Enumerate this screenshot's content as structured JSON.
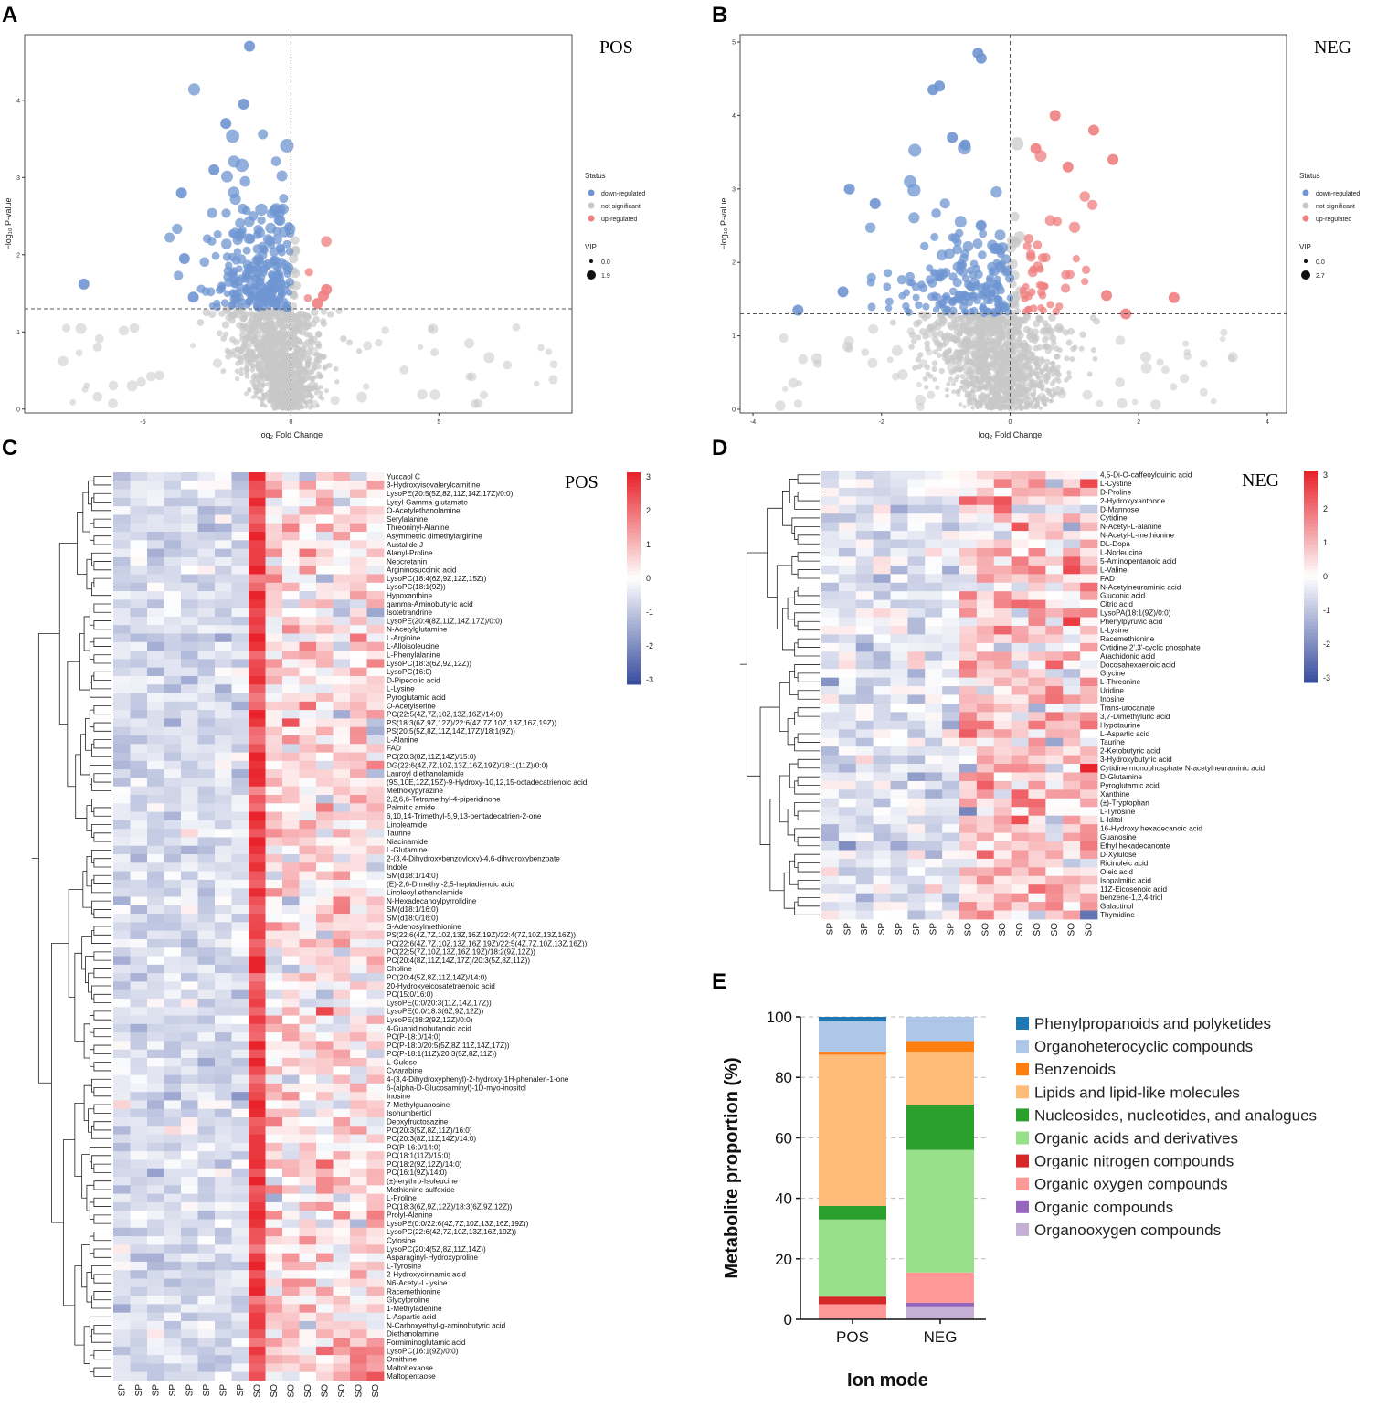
{
  "panel_labels": {
    "a": "A",
    "b": "B",
    "c": "C",
    "d": "D",
    "e": "E"
  },
  "colors": {
    "down": "#6f95d2",
    "ns": "#c8c8c8",
    "up": "#ef7f7f",
    "hm_low": "#3a4fa0",
    "hm_mid": "#ffffff",
    "hm_high": "#e8232b",
    "bar_colors": [
      "#1f77b4",
      "#aec7e8",
      "#ff7f0e",
      "#ffbb78",
      "#2ca02c",
      "#98df8a",
      "#d62728",
      "#ff9896",
      "#9467bd",
      "#c5b0d5"
    ]
  },
  "chart_data": [
    {
      "id": "volcano_pos",
      "type": "scatter",
      "title": "POS",
      "xlabel": "log₂ Fold Change",
      "ylabel": "−log₁₀ P-value",
      "xticks": [
        "-5",
        "0",
        "5"
      ],
      "yticks": [
        "0",
        "1",
        "2",
        "3",
        "4"
      ],
      "xlim": [
        -9,
        9.5
      ],
      "ylim": [
        -0.05,
        4.85
      ],
      "threshold_y": 1.3,
      "threshold_x": 0,
      "legend": {
        "status_title": "Status",
        "status": [
          "down-regulated",
          "not significant",
          "up-regulated"
        ],
        "vip_title": "VIP",
        "vip": [
          "0.0",
          "1.9"
        ]
      },
      "highlight_points": {
        "down": [
          [
            -1.4,
            4.7
          ],
          [
            -7.0,
            1.62
          ],
          [
            -3.7,
            2.8
          ],
          [
            -3.6,
            1.95
          ],
          [
            -3.3,
            1.45
          ],
          [
            -2.6,
            3.1
          ],
          [
            -2.2,
            3.7
          ],
          [
            -1.6,
            3.95
          ]
        ],
        "up": [
          [
            1.2,
            1.55
          ],
          [
            1.1,
            1.47
          ],
          [
            0.9,
            1.37
          ]
        ]
      }
    },
    {
      "id": "volcano_neg",
      "type": "scatter",
      "title": "NEG",
      "xlabel": "log₂ Fold Change",
      "ylabel": "−log₁₀ P-value",
      "xticks": [
        "-4",
        "-2",
        "0",
        "2",
        "4"
      ],
      "yticks": [
        "0",
        "1",
        "2",
        "3",
        "4",
        "5"
      ],
      "xlim": [
        -4.2,
        4.3
      ],
      "ylim": [
        -0.05,
        5.1
      ],
      "threshold_y": 1.3,
      "threshold_x": 0,
      "legend": {
        "status_title": "Status",
        "status": [
          "down-regulated",
          "not significant",
          "up-regulated"
        ],
        "vip_title": "VIP",
        "vip": [
          "0.0",
          "2.7"
        ]
      },
      "highlight_points": {
        "down": [
          [
            -0.5,
            4.85
          ],
          [
            -0.45,
            4.78
          ],
          [
            -1.1,
            4.4
          ],
          [
            -1.2,
            4.35
          ],
          [
            -2.5,
            3.0
          ],
          [
            -3.3,
            1.35
          ],
          [
            -2.6,
            1.6
          ],
          [
            -2.1,
            2.8
          ],
          [
            -0.9,
            3.7
          ],
          [
            -0.7,
            3.6
          ]
        ],
        "up": [
          [
            0.7,
            4.0
          ],
          [
            1.3,
            3.8
          ],
          [
            1.6,
            3.4
          ],
          [
            0.4,
            3.55
          ],
          [
            2.55,
            1.52
          ],
          [
            1.5,
            1.55
          ],
          [
            0.9,
            3.3
          ],
          [
            1.8,
            1.3
          ]
        ]
      }
    },
    {
      "id": "heatmap_pos",
      "type": "heatmap",
      "title": "POS",
      "columns": [
        "SP",
        "SP",
        "SP",
        "SP",
        "SP",
        "SP",
        "SP",
        "SP",
        "SO",
        "SO",
        "SO",
        "SO",
        "SO",
        "SO",
        "SO",
        "SO"
      ],
      "colorbar_ticks": [
        "3",
        "2",
        "1",
        "0",
        "-1",
        "-2",
        "-3"
      ],
      "rows": [
        "Yuccaol C",
        "3-Hydroxyisovalerylcarnitine",
        "LysoPE(20:5(5Z,8Z,11Z,14Z,17Z)/0:0)",
        "Lysyl-Gamma-glutamate",
        "O-Acetylethanolamine",
        "Serylalanine",
        "Threoninyl-Alanine",
        "Asymmetric dimethylarginine",
        "Austalide J",
        "Alanyl-Proline",
        "Neocretanin",
        "Argininosuccinic acid",
        "LysoPC(18:4(6Z,9Z,12Z,15Z))",
        "LysoPC(18:1(9Z))",
        "Hypoxanthine",
        "gamma-Aminobutyric acid",
        "Isotetrandrine",
        "LysoPE(20:4(8Z,11Z,14Z,17Z)/0:0)",
        "N-Acetylglutamine",
        "L-Arginine",
        "L-Alloisoleucine",
        "L-Phenylalanine",
        "LysoPC(18:3(6Z,9Z,12Z))",
        "LysoPC(16:0)",
        "D-Pipecolic acid",
        "L-Lysine",
        "Pyroglutamic acid",
        "O-Acetylserine",
        "PC(22:5(4Z,7Z,10Z,13Z,16Z)/14:0)",
        "PS(18:3(6Z,9Z,12Z)/22:6(4Z,7Z,10Z,13Z,16Z,19Z))",
        "PS(20:5(5Z,8Z,11Z,14Z,17Z)/18:1(9Z))",
        "L-Alanine",
        "FAD",
        "PC(20:3(8Z,11Z,14Z)/15:0)",
        "DG(22:6(4Z,7Z,10Z,13Z,16Z,19Z)/18:1(11Z)/0:0)",
        "Lauroyl diethanolamide",
        "(9S,10E,12Z,15Z)-9-Hydroxy-10,12,15-octadecatrienoic acid",
        "Methoxypyrazine",
        "2,2,6,6-Tetramethyl-4-piperidinone",
        "Palmitic amide",
        "6,10,14-Trimethyl-5,9,13-pentadecatrien-2-one",
        "Linoleamide",
        "Taurine",
        "Niacinamide",
        "L-Glutamine",
        "2-(3,4-Dihydroxybenzoyloxy)-4,6-dihydroxybenzoate",
        "Indole",
        "SM(d18:1/14:0)",
        "(E)-2,6-Dimethyl-2,5-heptadienoic acid",
        "Linoleoyl ethanolamide",
        "N-Hexadecanoylpyrrolidine",
        "SM(d18:1/16:0)",
        "SM(d18:0/16:0)",
        "S-Adenosylmethionine",
        "PS(22:6(4Z,7Z,10Z,13Z,16Z,19Z)/22:4(7Z,10Z,13Z,16Z))",
        "PC(22:6(4Z,7Z,10Z,13Z,16Z,19Z)/22:5(4Z,7Z,10Z,13Z,16Z))",
        "PC(22:5(7Z,10Z,13Z,16Z,19Z)/18:2(9Z,12Z))",
        "PC(20:4(8Z,11Z,14Z,17Z)/20:3(5Z,8Z,11Z))",
        "Choline",
        "PC(20:4(5Z,8Z,11Z,14Z)/14:0)",
        "20-Hydroxyeicosatetraenoic acid",
        "PC(15:0/16:0)",
        "LysoPE(0:0/20:3(11Z,14Z,17Z))",
        "LysoPE(0:0/18:3(6Z,9Z,12Z))",
        "LysoPE(18:2(9Z,12Z)/0:0)",
        "4-Guanidinobutanoic acid",
        "PC(P-18:0/14:0)",
        "PC(P-18:0/20:5(5Z,8Z,11Z,14Z,17Z))",
        "PC(P-18:1(11Z)/20:3(5Z,8Z,11Z))",
        "L-Gulose",
        "Cytarabine",
        "4-(3,4-Dihydroxyphenyl)-2-hydroxy-1H-phenalen-1-one",
        "6-(alpha-D-Glucosaminyl)-1D-myo-inositol",
        "Inosine",
        "7-Methylguanosine",
        "Isohumbertiol",
        "Deoxyfructosazine",
        "PC(20:3(5Z,8Z,11Z)/16:0)",
        "PC(20:3(8Z,11Z,14Z)/14:0)",
        "PC(P-16:0/14:0)",
        "PC(18:1(11Z)/15:0)",
        "PC(18:2(9Z,12Z)/14:0)",
        "PC(16:1(9Z)/14:0)",
        "(±)-erythro-Isoleucine",
        "Methionine sulfoxide",
        "L-Proline",
        "PC(18:3(6Z,9Z,12Z)/18:3(6Z,9Z,12Z))",
        "Prolyl-Alanine",
        "LysoPE(0:0/22:6(4Z,7Z,10Z,13Z,16Z,19Z))",
        "LysoPC(22:6(4Z,7Z,10Z,13Z,16Z,19Z))",
        "Cytosine",
        "LysoPC(20:4(5Z,8Z,11Z,14Z))",
        "Asparaginyl-Hydroxyproline",
        "L-Tyrosine",
        "2-Hydroxycinnamic acid",
        "N6-Acetyl-L-lysine",
        "Racemethionine",
        "Glycylproline",
        "1-Methyladenine",
        "L-Aspartic acid",
        "N-Carboxyethyl-g-aminobutyric acid",
        "Diethanolamine",
        "Formiminoglutamic acid",
        "LysoPC(16:1(9Z)/0:0)",
        "Ornithine",
        "Maltohexaose",
        "Maltopentaose"
      ]
    },
    {
      "id": "heatmap_neg",
      "type": "heatmap",
      "title": "NEG",
      "columns": [
        "SP",
        "SP",
        "SP",
        "SP",
        "SP",
        "SP",
        "SP",
        "SP",
        "SO",
        "SO",
        "SO",
        "SO",
        "SO",
        "SO",
        "SO",
        "SO"
      ],
      "colorbar_ticks": [
        "3",
        "2",
        "1",
        "0",
        "-1",
        "-2",
        "-3"
      ],
      "rows": [
        "4,5-Di-O-caffeoylquinic acid",
        "L-Cystine",
        "D-Proline",
        "2-Hydroxyxanthone",
        "D-Mannose",
        "Cytidine",
        "N-Acetyl-L-alanine",
        "N-Acetyl-L-methionine",
        "DL-Dopa",
        "L-Norleucine",
        "5-Aminopentanoic acid",
        "L-Valine",
        "FAD",
        "N-Acetylneuraminic acid",
        "Gluconic acid",
        "Citric acid",
        "LysoPA(18:1(9Z)/0:0)",
        "Phenylpyruvic acid",
        "L-Lysine",
        "Racemethionine",
        "Cytidine 2',3'-cyclic phosphate",
        "Arachidonic acid",
        "Docosahexaenoic acid",
        "Glycine",
        "L-Threonine",
        "Uridine",
        "Inosine",
        "Trans-urocanate",
        "3,7-Dimethyluric acid",
        "Hypotaurine",
        "L-Aspartic acid",
        "Taurine",
        "2-Ketobutyric acid",
        "3-Hydroxybutyric acid",
        "Cytidine monophosphate N-acetylneuraminic acid",
        "D-Glutamine",
        "Pyroglutamic acid",
        "Xanthine",
        "(±)-Tryptophan",
        "L-Tyrosine",
        "L-Iditol",
        "16-Hydroxy hexadecanoic acid",
        "Guanosine",
        "Ethyl hexadecanoate",
        "D-Xylulose",
        "Ricinoleic acid",
        "Oleic acid",
        "Isopalmitic acid",
        "11Z-Eicosenoic acid",
        "benzene-1,2,4-triol",
        "Galactinol",
        "Thymidine"
      ]
    },
    {
      "id": "stacked_bar",
      "type": "bar",
      "stacked": true,
      "categories": [
        "POS",
        "NEG"
      ],
      "xlabel": "Ion mode",
      "ylabel": "Metabolite proportion (%)",
      "ylim": [
        0,
        100
      ],
      "yticks": [
        "0",
        "20",
        "40",
        "60",
        "80",
        "100"
      ],
      "series": [
        {
          "name": "Organooxygen compounds",
          "values": [
            0,
            4
          ]
        },
        {
          "name": "Organic compounds",
          "values": [
            0,
            1.5
          ]
        },
        {
          "name": "Organic oxygen compounds",
          "values": [
            5,
            10
          ]
        },
        {
          "name": "Organic nitrogen compounds",
          "values": [
            2.5,
            0
          ]
        },
        {
          "name": "Organic acids and derivatives",
          "values": [
            25.5,
            40.5
          ]
        },
        {
          "name": "Nucleosides, nucleotides, and analogues",
          "values": [
            4.5,
            15
          ]
        },
        {
          "name": "Lipids and lipid-like molecules",
          "values": [
            50,
            17.5
          ]
        },
        {
          "name": "Benzenoids",
          "values": [
            1,
            3.5
          ]
        },
        {
          "name": "Organoheterocyclic compounds",
          "values": [
            10,
            8
          ]
        },
        {
          "name": "Phenylpropanoids and polyketides",
          "values": [
            1.5,
            0
          ]
        }
      ],
      "legend_order": [
        "Phenylpropanoids and polyketides",
        "Organoheterocyclic compounds",
        "Benzenoids",
        "Lipids and lipid-like molecules",
        "Nucleosides, nucleotides, and analogues",
        "Organic acids and derivatives",
        "Organic nitrogen compounds",
        "Organic oxygen compounds",
        "Organic compounds",
        "Organooxygen compounds"
      ]
    }
  ]
}
